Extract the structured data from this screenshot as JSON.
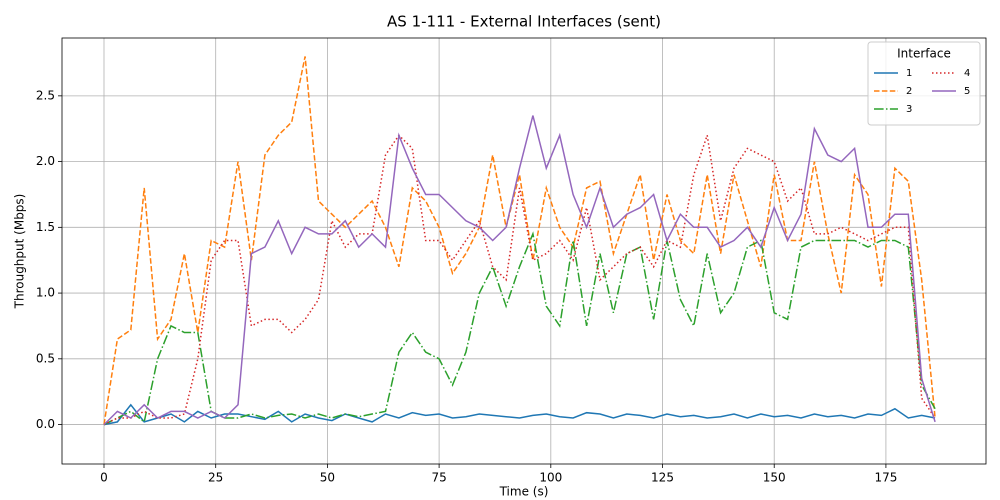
{
  "chart_data": {
    "type": "line",
    "title": "AS 1-111 - External Interfaces (sent)",
    "x_label": "Time (s)",
    "y_label": "Throughput (Mbps)",
    "legend_title": "Interface",
    "legend_position": "upper right",
    "legend_columns": 2,
    "grid": true,
    "xlim": [
      -9.4,
      197.4
    ],
    "ylim": [
      -0.3,
      2.94
    ],
    "xticks": [
      0,
      25,
      50,
      75,
      100,
      125,
      150,
      175
    ],
    "yticks": [
      {
        "value": 0,
        "label": "0.0"
      },
      0.5,
      {
        "value": 1,
        "label": "1.0"
      },
      1.5,
      {
        "value": 2,
        "label": "2.0"
      },
      2.5
    ],
    "x": [
      0,
      3,
      6,
      9,
      12,
      15,
      18,
      21,
      24,
      27,
      30,
      33,
      36,
      39,
      42,
      45,
      48,
      51,
      54,
      57,
      60,
      63,
      66,
      69,
      72,
      75,
      78,
      81,
      84,
      87,
      90,
      93,
      96,
      99,
      102,
      105,
      108,
      111,
      114,
      117,
      120,
      123,
      126,
      129,
      132,
      135,
      138,
      141,
      144,
      147,
      150,
      153,
      156,
      159,
      162,
      165,
      168,
      171,
      174,
      177,
      180,
      183,
      186
    ],
    "series": [
      {
        "name": "1",
        "color": "#1f77b4",
        "linestyle": "solid",
        "values": [
          0,
          0.02,
          0.15,
          0.02,
          0.05,
          0.08,
          0.02,
          0.1,
          0.05,
          0.08,
          0.08,
          0.06,
          0.04,
          0.1,
          0.02,
          0.08,
          0.05,
          0.03,
          0.08,
          0.05,
          0.02,
          0.08,
          0.05,
          0.09,
          0.07,
          0.08,
          0.05,
          0.06,
          0.08,
          0.07,
          0.06,
          0.05,
          0.07,
          0.08,
          0.06,
          0.05,
          0.09,
          0.08,
          0.05,
          0.08,
          0.07,
          0.05,
          0.08,
          0.06,
          0.07,
          0.05,
          0.06,
          0.08,
          0.05,
          0.08,
          0.06,
          0.07,
          0.05,
          0.08,
          0.06,
          0.07,
          0.05,
          0.08,
          0.07,
          0.12,
          0.05,
          0.07,
          0.05
        ]
      },
      {
        "name": "2",
        "color": "#ff7f0e",
        "linestyle": "dashed",
        "values": [
          0,
          0.65,
          0.72,
          1.8,
          0.65,
          0.8,
          1.3,
          0.7,
          1.4,
          1.35,
          2.0,
          1.25,
          2.05,
          2.2,
          2.3,
          2.8,
          1.7,
          1.6,
          1.5,
          1.6,
          1.7,
          1.5,
          1.2,
          1.8,
          1.7,
          1.5,
          1.15,
          1.3,
          1.5,
          2.05,
          1.5,
          1.9,
          1.25,
          1.8,
          1.5,
          1.35,
          1.8,
          1.85,
          1.3,
          1.6,
          1.9,
          1.25,
          1.75,
          1.4,
          1.3,
          1.9,
          1.3,
          1.9,
          1.55,
          1.2,
          1.9,
          1.4,
          1.4,
          2.0,
          1.45,
          1.0,
          1.9,
          1.75,
          1.05,
          1.95,
          1.85,
          1.1,
          0.05
        ]
      },
      {
        "name": "3",
        "color": "#2ca02c",
        "linestyle": "dashdot",
        "values": [
          0,
          0.05,
          0.1,
          0.02,
          0.5,
          0.75,
          0.7,
          0.7,
          0.1,
          0.05,
          0.05,
          0.08,
          0.05,
          0.07,
          0.08,
          0.05,
          0.08,
          0.05,
          0.08,
          0.06,
          0.08,
          0.1,
          0.55,
          0.7,
          0.55,
          0.5,
          0.3,
          0.55,
          1.0,
          1.2,
          0.9,
          1.2,
          1.45,
          0.9,
          0.75,
          1.4,
          0.75,
          1.3,
          0.85,
          1.3,
          1.35,
          0.8,
          1.4,
          0.95,
          0.75,
          1.3,
          0.85,
          1.0,
          1.35,
          1.4,
          0.85,
          0.8,
          1.35,
          1.4,
          1.4,
          1.4,
          1.4,
          1.35,
          1.4,
          1.4,
          1.35,
          0.3,
          0.12
        ]
      },
      {
        "name": "4",
        "color": "#d62728",
        "linestyle": "dotted",
        "values": [
          0,
          0.05,
          0.05,
          0.1,
          0.05,
          0.05,
          0.08,
          0.5,
          1.25,
          1.4,
          1.4,
          0.75,
          0.8,
          0.8,
          0.7,
          0.8,
          0.95,
          1.55,
          1.35,
          1.45,
          1.45,
          2.05,
          2.2,
          2.1,
          1.4,
          1.4,
          1.25,
          1.4,
          1.55,
          1.2,
          1.1,
          1.8,
          1.25,
          1.3,
          1.4,
          1.25,
          1.65,
          1.1,
          1.2,
          1.3,
          1.35,
          1.2,
          1.4,
          1.35,
          1.9,
          2.2,
          1.55,
          1.95,
          2.1,
          2.05,
          2.0,
          1.7,
          1.8,
          1.45,
          1.45,
          1.5,
          1.45,
          1.4,
          1.45,
          1.5,
          1.5,
          0.2,
          0.05
        ]
      },
      {
        "name": "5",
        "color": "#9467bd",
        "linestyle": "solid",
        "values": [
          0,
          0.1,
          0.05,
          0.15,
          0.05,
          0.1,
          0.1,
          0.05,
          0.1,
          0.05,
          0.15,
          1.3,
          1.35,
          1.55,
          1.3,
          1.5,
          1.45,
          1.45,
          1.55,
          1.35,
          1.45,
          1.35,
          2.2,
          1.95,
          1.75,
          1.75,
          1.65,
          1.55,
          1.5,
          1.4,
          1.5,
          1.95,
          2.35,
          1.95,
          2.2,
          1.75,
          1.5,
          1.8,
          1.5,
          1.6,
          1.65,
          1.75,
          1.4,
          1.6,
          1.5,
          1.5,
          1.35,
          1.4,
          1.5,
          1.35,
          1.65,
          1.4,
          1.6,
          2.25,
          2.05,
          2.0,
          2.1,
          1.5,
          1.5,
          1.6,
          1.6,
          0.35,
          0.02
        ]
      }
    ]
  }
}
